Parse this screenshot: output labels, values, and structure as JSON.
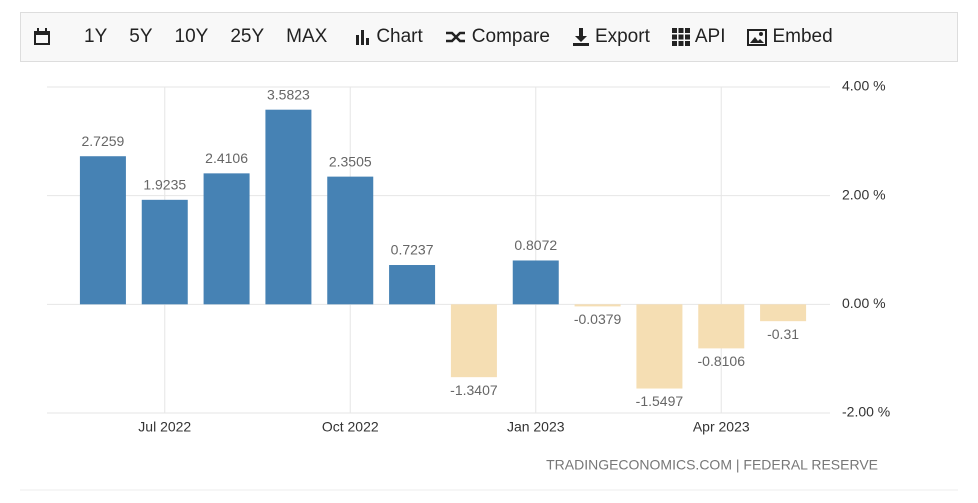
{
  "toolbar": [
    "1Y",
    "5Y",
    "10Y",
    "25Y",
    "MAX",
    "Chart",
    "Compare",
    "Export",
    "API",
    "Embed"
  ],
  "chart_data": {
    "type": "bar",
    "categories": [
      null,
      "Jul 2022",
      null,
      null,
      "Oct 2022",
      null,
      null,
      "Jan 2023",
      null,
      null,
      "Apr 2023",
      null
    ],
    "values": [
      2.7259,
      1.9235,
      2.4106,
      3.5823,
      2.3505,
      0.7237,
      -1.3407,
      0.8072,
      -0.0379,
      -1.5497,
      -0.8106,
      -0.31
    ],
    "colors": {
      "positive": "#4682b4",
      "negative": "#f5deb3"
    },
    "ylim": [
      -2,
      4
    ],
    "yticks": [
      {
        "value": 4,
        "label": "4.00 %"
      },
      {
        "value": 2,
        "label": "2.00 %"
      },
      {
        "value": 0,
        "label": "0.00 %"
      },
      {
        "value": -2,
        "label": "-2.00 %"
      }
    ],
    "grid": true,
    "source": "TRADINGECONOMICS.COM | FEDERAL RESERVE"
  }
}
